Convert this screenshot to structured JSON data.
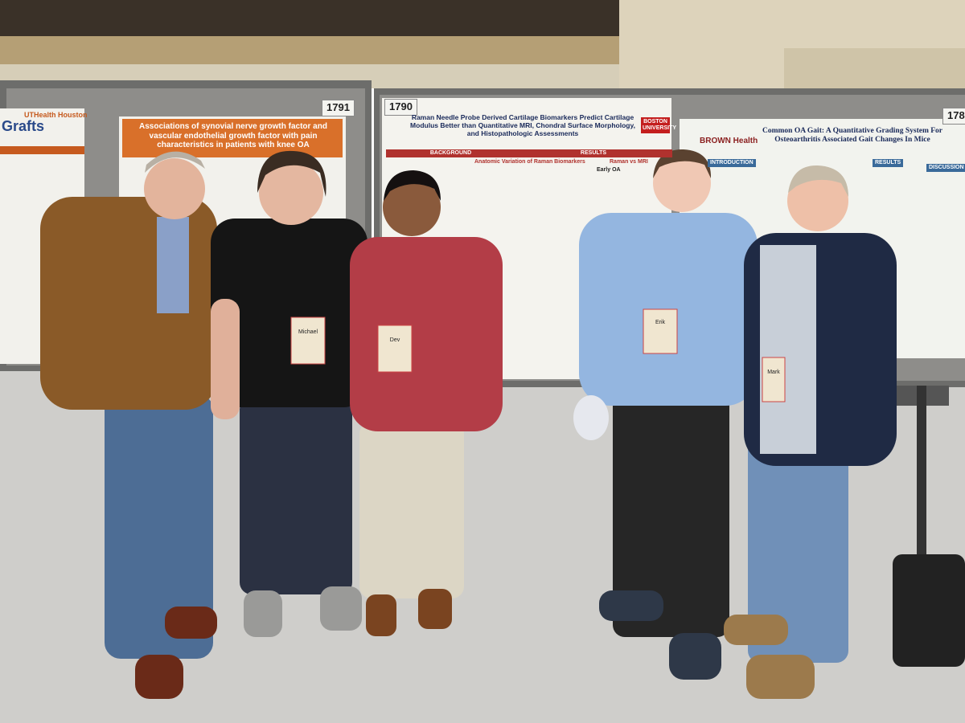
{
  "left_poster": {
    "institution": "UTHealth Houston",
    "title": "Grafts"
  },
  "posters": [
    {
      "number": "1791",
      "title": "Associations of synovial nerve growth factor and vascular endothelial growth factor with pain characteristics in patients with knee OA"
    },
    {
      "number": "1790",
      "title": "Raman Needle Probe Derived Cartilage Biomarkers Predict Cartilage Modulus Better than Quantitative MRI, Chondral Surface Morphology, and Histopathologic Assessments",
      "institution": "BOSTON UNIVERSITY",
      "sections": [
        "BACKGROUND",
        "RESULTS",
        "Anatomic Variation of Raman Biomarkers",
        "Raman vs MRI",
        "Early OA"
      ]
    },
    {
      "number": "178",
      "title": "Common OA Gait: A Quantitative Grading System For Osteoarthritis Associated Gait Changes In Mice",
      "institution": "BROWN Health",
      "sections": [
        "INTRODUCTION",
        "RESULTS",
        "DISCUSSION"
      ]
    }
  ],
  "badges": [
    "Michael",
    "Dev",
    "Erik",
    "Mark"
  ]
}
